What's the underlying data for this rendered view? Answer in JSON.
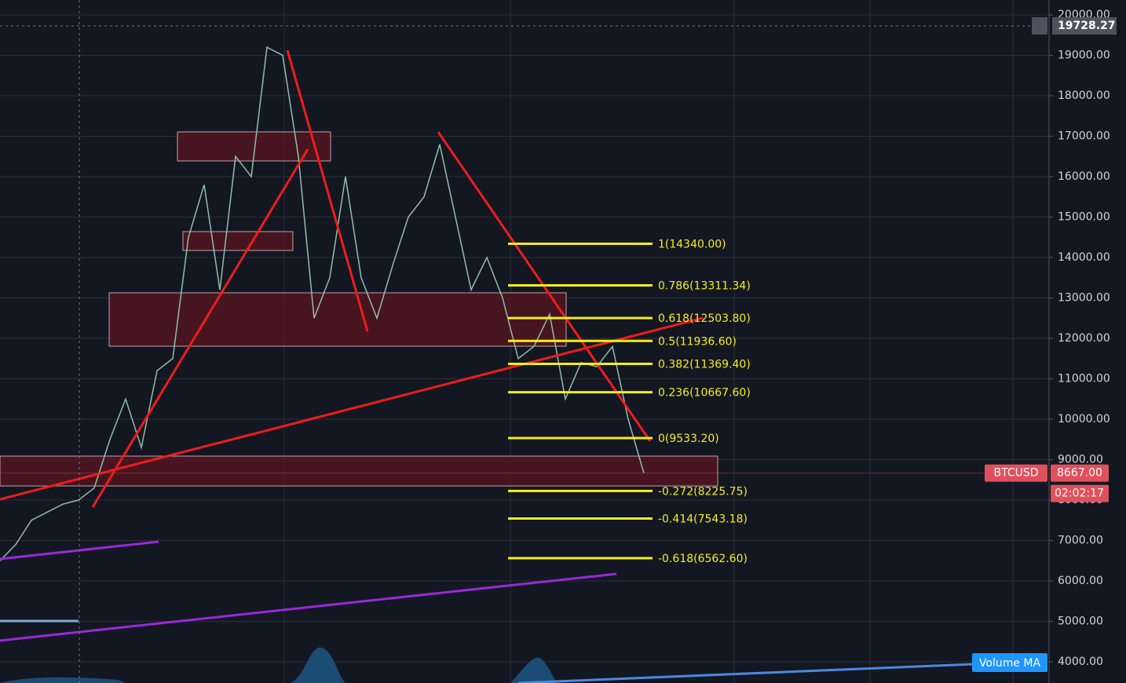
{
  "chart_data": {
    "type": "line",
    "series": [
      {
        "name": "BTCUSD",
        "color": "#8fbfa8",
        "values": [
          6500,
          6900,
          7500,
          7700,
          7900,
          8000,
          8300,
          9500,
          10500,
          9300,
          11200,
          11500,
          14500,
          15800,
          13200,
          16500,
          16000,
          19200,
          19000,
          16500,
          12500,
          13500,
          16000,
          13500,
          12500,
          13800,
          15000,
          15500,
          16800,
          15000,
          13200,
          14000,
          13000,
          11500,
          11800,
          12600,
          10500,
          11400,
          11300,
          11800,
          10000,
          8667
        ]
      }
    ],
    "categories": [
      null,
      null,
      null,
      null,
      null,
      null,
      null,
      null,
      null,
      null,
      null,
      null,
      null,
      null,
      null,
      null,
      null,
      null,
      null,
      null,
      null,
      null,
      null,
      null,
      null,
      null,
      null,
      null,
      null,
      null,
      null,
      null,
      null,
      null,
      null,
      null,
      null,
      null,
      null,
      null,
      null,
      null
    ],
    "ylim": [
      3476,
      20369
    ],
    "yticks": [
      {
        "value": 4000,
        "label": "4000.00"
      },
      {
        "value": 5000,
        "label": "5000.00"
      },
      {
        "value": 6000,
        "label": "6000.00"
      },
      {
        "value": 7000,
        "label": "7000.00"
      },
      {
        "value": 8000,
        "label": "8000.00"
      },
      {
        "value": 9000,
        "label": "9000.00"
      },
      {
        "value": 10000,
        "label": "10000.00"
      },
      {
        "value": 11000,
        "label": "11000.00"
      },
      {
        "value": 12000,
        "label": "12000.00"
      },
      {
        "value": 13000,
        "label": "13000.00"
      },
      {
        "value": 14000,
        "label": "14000.00"
      },
      {
        "value": 15000,
        "label": "15000.00"
      },
      {
        "value": 16000,
        "label": "16000.00"
      },
      {
        "value": 17000,
        "label": "17000.00"
      },
      {
        "value": 18000,
        "label": "18000.00"
      },
      {
        "value": 19000,
        "label": "19000.00"
      },
      {
        "value": 20000,
        "label": "20000.00"
      }
    ],
    "grid": true,
    "fib_levels": [
      {
        "value": 14340,
        "label": "1(14340.00)"
      },
      {
        "value": 13311.34,
        "label": "0.786(13311.34)"
      },
      {
        "value": 12503.8,
        "label": "0.618(12503.80)"
      },
      {
        "value": 11936.6,
        "label": "0.5(11936.60)"
      },
      {
        "value": 11369.4,
        "label": "0.382(11369.40)"
      },
      {
        "value": 10667.6,
        "label": "0.236(10667.60)"
      },
      {
        "value": 9533.2,
        "label": "0(9533.20)"
      },
      {
        "value": 8225.75,
        "label": "-0.272(8225.75)"
      },
      {
        "value": 7543.18,
        "label": "-0.414(7543.18)"
      },
      {
        "value": 6562.6,
        "label": "-0.618(6562.60)"
      }
    ],
    "fib_color": "#f5ee1a",
    "symbol": "BTCUSD",
    "last_price": {
      "value": 8667,
      "label": "8667.00"
    },
    "countdown": "02:02:17",
    "crosshair_price": {
      "value": 19728.27,
      "label": "19728.27"
    },
    "volume_ma_label": "Volume MA"
  }
}
